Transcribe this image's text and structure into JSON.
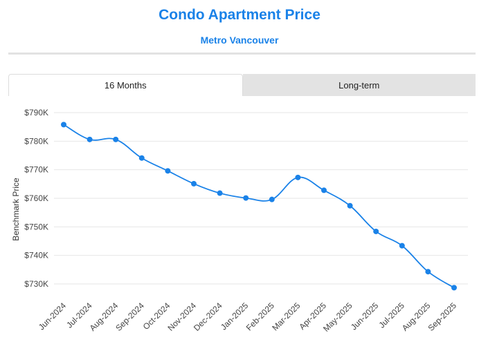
{
  "header": {
    "title": "Condo Apartment Price",
    "subtitle": "Metro Vancouver"
  },
  "tabs": [
    {
      "label": "16 Months",
      "active": true
    },
    {
      "label": "Long-term",
      "active": false
    }
  ],
  "colors": {
    "accent": "#1a82e8",
    "line": "#1a82e8",
    "grid": "#e6e6e6"
  },
  "chart_data": {
    "type": "line",
    "title": "",
    "xlabel": "",
    "ylabel": "Benchmark Price",
    "ylim": [
      726000,
      793000
    ],
    "yticks": [
      730000,
      740000,
      750000,
      760000,
      770000,
      780000,
      790000
    ],
    "ytick_labels": [
      "$730K",
      "$740K",
      "$750K",
      "$760K",
      "$770K",
      "$780K",
      "$790K"
    ],
    "grid": true,
    "categories": [
      "Jun-2024",
      "Jul-2024",
      "Aug-2024",
      "Sep-2024",
      "Oct-2024",
      "Nov-2024",
      "Dec-2024",
      "Jan-2025",
      "Feb-2025",
      "Mar-2025",
      "Apr-2025",
      "May-2025",
      "Jun-2025",
      "Jul-2025",
      "Aug-2025",
      "Sep-2025"
    ],
    "series": [
      {
        "values": [
          785800,
          780600,
          780600,
          774100,
          769600,
          765100,
          761800,
          760100,
          759600,
          767300,
          762800,
          757400,
          748400,
          743400,
          734300,
          728700
        ]
      }
    ]
  }
}
